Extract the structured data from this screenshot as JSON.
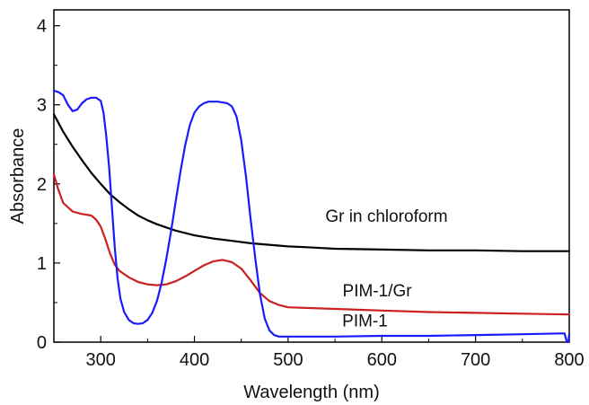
{
  "chart_data": {
    "type": "line",
    "title": "",
    "xlabel": "Wavelength (nm)",
    "ylabel": "Absorbance",
    "xlim": [
      250,
      800
    ],
    "ylim": [
      0,
      4.2
    ],
    "x_ticks": [
      300,
      400,
      500,
      600,
      700,
      800
    ],
    "y_ticks": [
      0,
      1,
      2,
      3,
      4
    ],
    "grid": false,
    "legend": "none",
    "series": [
      {
        "name": "Gr in chloroform",
        "color": "#000000",
        "x": [
          250,
          260,
          270,
          280,
          290,
          300,
          310,
          320,
          330,
          340,
          350,
          360,
          370,
          380,
          390,
          400,
          420,
          440,
          460,
          480,
          500,
          520,
          550,
          600,
          650,
          700,
          750,
          800
        ],
        "y": [
          2.88,
          2.66,
          2.47,
          2.3,
          2.14,
          2.0,
          1.87,
          1.77,
          1.68,
          1.6,
          1.54,
          1.49,
          1.45,
          1.41,
          1.38,
          1.35,
          1.31,
          1.28,
          1.25,
          1.23,
          1.21,
          1.2,
          1.18,
          1.17,
          1.16,
          1.16,
          1.15,
          1.15
        ]
      },
      {
        "name": "PIM-1/Gr",
        "color": "#cc1f1f",
        "x": [
          250,
          255,
          260,
          270,
          280,
          290,
          295,
          300,
          305,
          310,
          315,
          320,
          330,
          340,
          350,
          360,
          370,
          380,
          390,
          400,
          410,
          420,
          430,
          440,
          450,
          460,
          470,
          480,
          490,
          500,
          550,
          600,
          650,
          700,
          750,
          800
        ],
        "y": [
          2.12,
          1.92,
          1.76,
          1.65,
          1.62,
          1.6,
          1.55,
          1.46,
          1.3,
          1.12,
          0.98,
          0.9,
          0.82,
          0.76,
          0.73,
          0.72,
          0.73,
          0.77,
          0.83,
          0.9,
          0.97,
          1.02,
          1.04,
          1.01,
          0.93,
          0.78,
          0.62,
          0.52,
          0.47,
          0.44,
          0.42,
          0.4,
          0.38,
          0.37,
          0.36,
          0.35
        ]
      },
      {
        "name": "PIM-1",
        "color": "#1a1aff",
        "x": [
          250,
          255,
          260,
          265,
          270,
          275,
          280,
          285,
          290,
          295,
          300,
          303,
          306,
          309,
          312,
          315,
          318,
          321,
          325,
          330,
          335,
          340,
          345,
          350,
          355,
          360,
          365,
          370,
          375,
          380,
          385,
          390,
          395,
          400,
          405,
          410,
          415,
          420,
          425,
          430,
          435,
          440,
          445,
          450,
          455,
          460,
          465,
          470,
          475,
          480,
          485,
          490,
          495,
          500,
          550,
          600,
          650,
          700,
          750,
          790,
          795,
          797,
          799,
          800
        ],
        "y": [
          3.18,
          3.16,
          3.12,
          3.0,
          2.92,
          2.94,
          3.02,
          3.07,
          3.09,
          3.09,
          3.05,
          2.9,
          2.6,
          2.2,
          1.7,
          1.2,
          0.8,
          0.55,
          0.38,
          0.28,
          0.24,
          0.23,
          0.24,
          0.28,
          0.37,
          0.52,
          0.75,
          1.05,
          1.4,
          1.78,
          2.15,
          2.48,
          2.74,
          2.9,
          2.98,
          3.02,
          3.04,
          3.04,
          3.04,
          3.03,
          3.02,
          2.98,
          2.85,
          2.55,
          2.1,
          1.55,
          1.05,
          0.6,
          0.3,
          0.15,
          0.09,
          0.07,
          0.07,
          0.07,
          0.07,
          0.08,
          0.08,
          0.09,
          0.1,
          0.11,
          0.11,
          0.02,
          0.0,
          0.1
        ]
      }
    ],
    "annotations": [
      {
        "text": "Gr in chloroform",
        "x": 605,
        "y": 1.52
      },
      {
        "text": "PIM-1/Gr",
        "x": 595,
        "y": 0.58
      },
      {
        "text": "PIM-1",
        "x": 582,
        "y": 0.2
      }
    ]
  }
}
